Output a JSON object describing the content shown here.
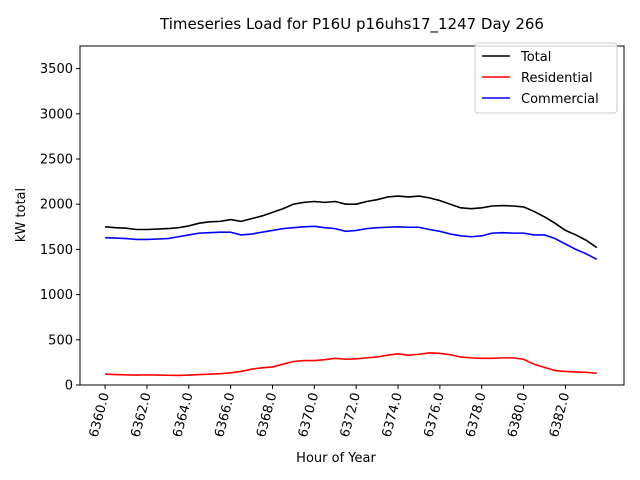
{
  "chart_data": {
    "type": "line",
    "title": "Timeseries Load for P16U p16uhs17_1247  Day 266",
    "xlabel": "Hour of Year",
    "ylabel": "kW total",
    "xlim": [
      6358.8,
      6384.8
    ],
    "ylim": [
      0,
      3750
    ],
    "xticks": [
      6360,
      6362,
      6364,
      6366,
      6368,
      6370,
      6372,
      6374,
      6376,
      6378,
      6380,
      6382
    ],
    "xtick_labels": [
      "6360.0",
      "6362.0",
      "6364.0",
      "6366.0",
      "6368.0",
      "6370.0",
      "6372.0",
      "6374.0",
      "6376.0",
      "6378.0",
      "6380.0",
      "6382.0"
    ],
    "yticks": [
      0,
      500,
      1000,
      1500,
      2000,
      2500,
      3000,
      3500
    ],
    "ytick_labels": [
      "0",
      "500",
      "1000",
      "1500",
      "2000",
      "2500",
      "3000",
      "3500"
    ],
    "grid": false,
    "legend_position": "top-right",
    "x": [
      6360,
      6360.5,
      6361,
      6361.5,
      6362,
      6362.5,
      6363,
      6363.5,
      6364,
      6364.5,
      6365,
      6365.5,
      6366,
      6366.5,
      6367,
      6367.5,
      6368,
      6368.5,
      6369,
      6369.5,
      6370,
      6370.5,
      6371,
      6371.5,
      6372,
      6372.5,
      6373,
      6373.5,
      6374,
      6374.5,
      6375,
      6375.5,
      6376,
      6376.5,
      6377,
      6377.5,
      6378,
      6378.5,
      6379,
      6379.5,
      6380,
      6380.5,
      6381,
      6381.5,
      6382,
      6382.5,
      6383,
      6383.5
    ],
    "series": [
      {
        "name": "Total",
        "color": "#000000",
        "values": [
          1750,
          1740,
          1735,
          1720,
          1720,
          1725,
          1730,
          1740,
          1760,
          1790,
          1805,
          1810,
          1830,
          1810,
          1840,
          1870,
          1910,
          1950,
          2000,
          2020,
          2030,
          2020,
          2030,
          2000,
          2000,
          2030,
          2050,
          2080,
          2090,
          2080,
          2090,
          2070,
          2040,
          2000,
          1960,
          1950,
          1960,
          1980,
          1985,
          1980,
          1970,
          1920,
          1860,
          1790,
          1710,
          1660,
          1600,
          1520
        ]
      },
      {
        "name": "Residential",
        "color": "#ff0000",
        "values": [
          120,
          115,
          112,
          110,
          112,
          110,
          108,
          106,
          110,
          115,
          120,
          125,
          135,
          150,
          175,
          190,
          200,
          230,
          260,
          270,
          270,
          280,
          295,
          285,
          290,
          300,
          310,
          330,
          345,
          330,
          340,
          355,
          350,
          335,
          310,
          300,
          295,
          295,
          300,
          300,
          285,
          230,
          195,
          160,
          150,
          145,
          140,
          130
        ]
      },
      {
        "name": "Commercial",
        "color": "#0000ff",
        "values": [
          1630,
          1625,
          1620,
          1610,
          1610,
          1615,
          1620,
          1640,
          1660,
          1680,
          1685,
          1690,
          1690,
          1660,
          1670,
          1690,
          1710,
          1730,
          1740,
          1750,
          1755,
          1740,
          1730,
          1700,
          1710,
          1730,
          1740,
          1745,
          1750,
          1745,
          1745,
          1720,
          1700,
          1670,
          1650,
          1640,
          1650,
          1680,
          1685,
          1680,
          1680,
          1660,
          1660,
          1620,
          1560,
          1500,
          1450,
          1390
        ]
      }
    ]
  }
}
